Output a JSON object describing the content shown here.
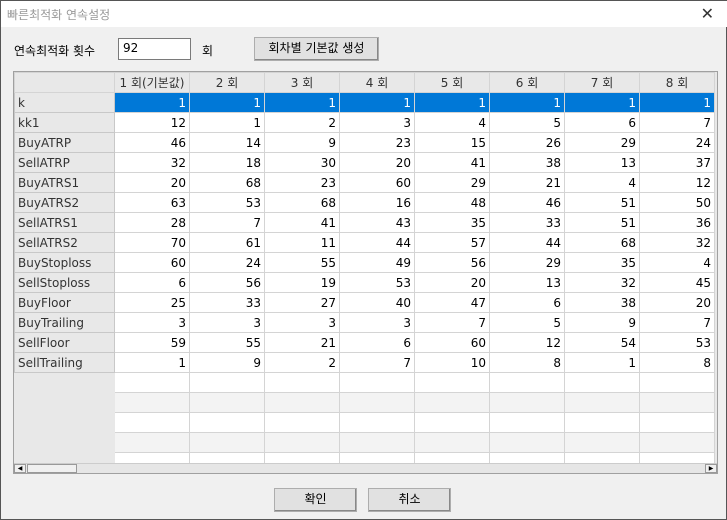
{
  "window": {
    "title": "빠른최적화 연속설정",
    "close_icon": "close-icon"
  },
  "form": {
    "count_label": "연속최적화 횟수",
    "count_value": "92",
    "unit": "회",
    "generate_button": "회차별 기본값 생성"
  },
  "table": {
    "columns": [
      "1 회(기본값)",
      "2 회",
      "3 회",
      "4 회",
      "5 회",
      "6 회",
      "7 회",
      "8 회"
    ],
    "rows": [
      {
        "name": "k",
        "values": [
          1,
          1,
          1,
          1,
          1,
          1,
          1,
          1
        ],
        "selected": true
      },
      {
        "name": "kk1",
        "values": [
          12,
          1,
          2,
          3,
          4,
          5,
          6,
          7
        ]
      },
      {
        "name": "BuyATRP",
        "values": [
          46,
          14,
          9,
          23,
          15,
          26,
          29,
          24
        ]
      },
      {
        "name": "SellATRP",
        "values": [
          32,
          18,
          30,
          20,
          41,
          38,
          13,
          37
        ]
      },
      {
        "name": "BuyATRS1",
        "values": [
          20,
          68,
          23,
          60,
          29,
          21,
          4,
          12
        ]
      },
      {
        "name": "BuyATRS2",
        "values": [
          63,
          53,
          68,
          16,
          48,
          46,
          51,
          50
        ]
      },
      {
        "name": "SellATRS1",
        "values": [
          28,
          7,
          41,
          43,
          35,
          33,
          51,
          36
        ]
      },
      {
        "name": "SellATRS2",
        "values": [
          70,
          61,
          11,
          44,
          57,
          44,
          68,
          32
        ]
      },
      {
        "name": "BuyStoploss",
        "values": [
          60,
          24,
          55,
          49,
          56,
          29,
          35,
          4
        ]
      },
      {
        "name": "SellStoploss",
        "values": [
          6,
          56,
          19,
          53,
          20,
          13,
          32,
          45
        ]
      },
      {
        "name": "BuyFloor",
        "values": [
          25,
          33,
          27,
          40,
          47,
          6,
          38,
          20
        ]
      },
      {
        "name": "BuyTrailing",
        "values": [
          3,
          3,
          3,
          3,
          7,
          5,
          9,
          7
        ]
      },
      {
        "name": "SellFloor",
        "values": [
          59,
          55,
          21,
          6,
          60,
          12,
          54,
          53
        ]
      },
      {
        "name": "SellTrailing",
        "values": [
          1,
          9,
          2,
          7,
          10,
          8,
          1,
          8
        ]
      }
    ]
  },
  "footer": {
    "ok": "확인",
    "cancel": "취소"
  }
}
